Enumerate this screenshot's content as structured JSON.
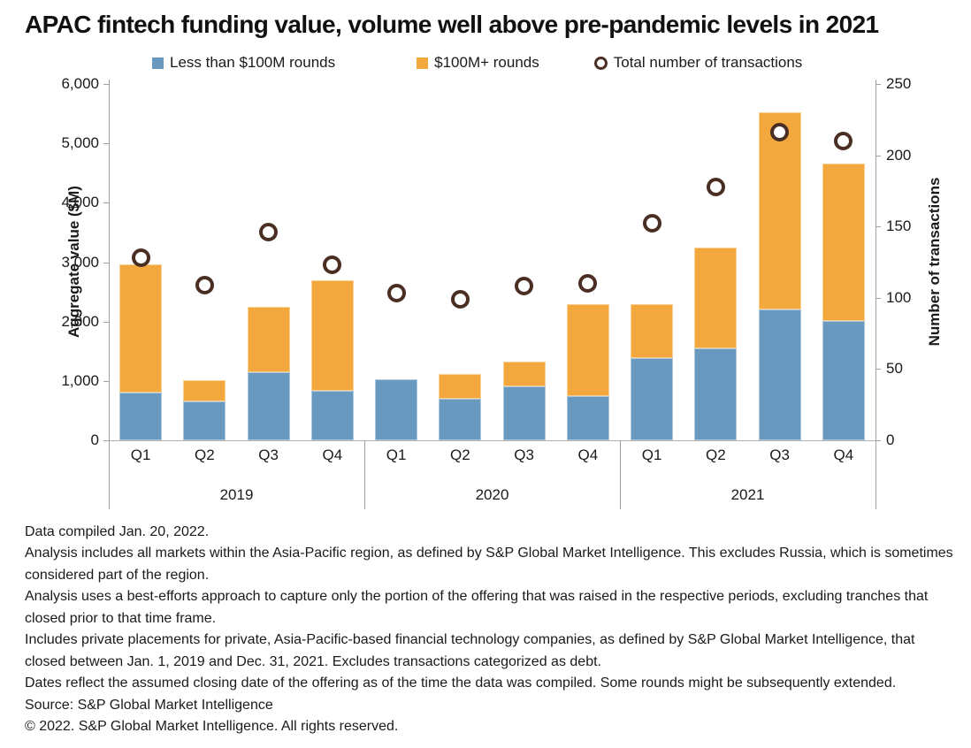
{
  "title": "APAC fintech funding value, volume well above pre-pandemic levels in 2021",
  "legend": {
    "items": [
      {
        "label": "Less than $100M rounds",
        "marker": "square",
        "color": "#6a99c0"
      },
      {
        "label": "$100M+ rounds",
        "marker": "square",
        "color": "#f2a83d"
      },
      {
        "label": "Total number of transactions",
        "marker": "ring",
        "color": "#4a2e23"
      }
    ]
  },
  "chart_data": {
    "type": "bar",
    "subtype": "stacked-bar with scatter overlay on secondary axis",
    "years": [
      "2019",
      "2020",
      "2021"
    ],
    "quarters": [
      "Q1",
      "Q2",
      "Q3",
      "Q4"
    ],
    "categories": [
      "2019 Q1",
      "2019 Q2",
      "2019 Q3",
      "2019 Q4",
      "2020 Q1",
      "2020 Q2",
      "2020 Q3",
      "2020 Q4",
      "2021 Q1",
      "2021 Q2",
      "2021 Q3",
      "2021 Q4"
    ],
    "series": [
      {
        "name": "Less than $100M rounds",
        "type": "bar",
        "stacked": true,
        "axis": "left",
        "color": "#6a99c0",
        "values": [
          800,
          660,
          1150,
          840,
          1020,
          700,
          910,
          740,
          1390,
          1550,
          2210,
          2010
        ]
      },
      {
        "name": "$100M+ rounds",
        "type": "bar",
        "stacked": true,
        "axis": "left",
        "color": "#f2a83d",
        "values": [
          2170,
          350,
          1100,
          1860,
          0,
          420,
          410,
          1560,
          910,
          1700,
          3310,
          2650
        ]
      },
      {
        "name": "Total number of transactions",
        "type": "scatter",
        "axis": "right",
        "color": "#4a2e23",
        "values": [
          128,
          109,
          146,
          123,
          103,
          99,
          108,
          110,
          152,
          178,
          216,
          210
        ]
      }
    ],
    "left_axis": {
      "label": "Aggregate value ($M)",
      "min": 0,
      "max": 6000,
      "tick_step": 1000,
      "ticks": [
        "0",
        "1,000",
        "2,000",
        "3,000",
        "4,000",
        "5,000",
        "6,000"
      ]
    },
    "right_axis": {
      "label": "Number of transactions",
      "min": 0,
      "max": 250,
      "tick_step": 50,
      "ticks": [
        "0",
        "50",
        "100",
        "150",
        "200",
        "250"
      ]
    },
    "grid": false,
    "legend_position": "top"
  },
  "footnotes": [
    "Data compiled Jan. 20, 2022.",
    "Analysis includes all markets within the Asia-Pacific region, as defined by S&P Global Market Intelligence. This excludes Russia, which is sometimes considered part of the region.",
    "Analysis uses a best-efforts approach to capture only the portion of the offering that was raised in the respective periods, excluding tranches that closed prior to that time frame.",
    "Includes private placements for private, Asia-Pacific-based financial technology companies, as defined by S&P Global Market Intelligence, that closed between Jan. 1, 2019 and Dec. 31, 2021. Excludes transactions categorized as debt.",
    "Dates reflect the assumed closing date of the offering as of the time the data was compiled. Some rounds might be subsequently extended.",
    "Source: S&P Global Market Intelligence",
    "© 2022. S&P Global Market Intelligence. All rights reserved."
  ]
}
